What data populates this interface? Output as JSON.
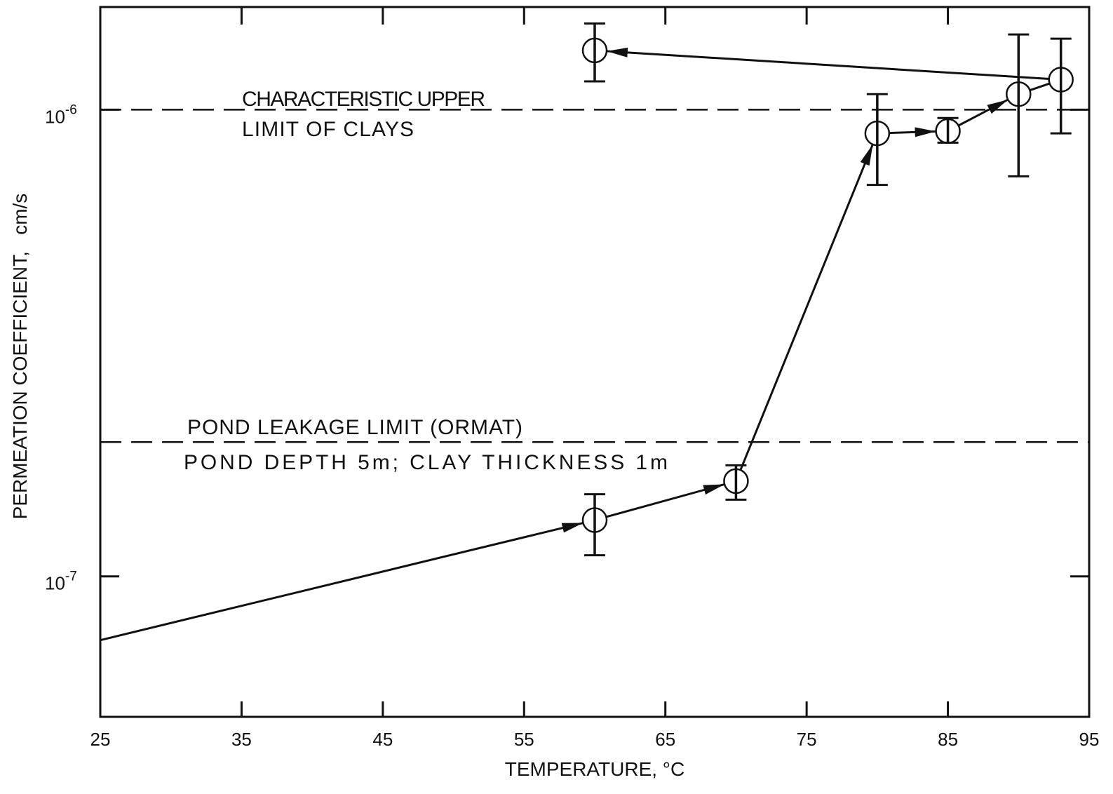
{
  "colors": {
    "ink": "#111111",
    "background": "#ffffff"
  },
  "chart_data": {
    "type": "scatter",
    "xlabel": "TEMPERATURE, °C",
    "ylabel": "PERMEATION COEFFICIENT,   cm/s",
    "x_scale": "linear",
    "y_scale": "log",
    "xlim": [
      25,
      95
    ],
    "ylim": [
      5e-08,
      1.66e-06
    ],
    "x_ticks": [
      25,
      35,
      45,
      55,
      65,
      75,
      85,
      95
    ],
    "y_ticks": [
      {
        "value": 1e-06,
        "base": "10",
        "exp": "-6"
      },
      {
        "value": 1e-07,
        "base": "10",
        "exp": "-7"
      }
    ],
    "grid": false,
    "legend": "none",
    "marker": "open-circle",
    "points": [
      {
        "x": 60,
        "y": 1.32e-07,
        "y_low": 1.11e-07,
        "y_high": 1.5e-07
      },
      {
        "x": 70,
        "y": 1.6e-07,
        "y_low": 1.46e-07,
        "y_high": 1.73e-07
      },
      {
        "x": 80,
        "y": 8.9e-07,
        "y_low": 6.9e-07,
        "y_high": 1.08e-06
      },
      {
        "x": 85,
        "y": 9e-07,
        "y_low": 8.5e-07,
        "y_high": 9.6e-07
      },
      {
        "x": 90,
        "y": 1.08e-06,
        "y_low": 7.2e-07,
        "y_high": 1.45e-06
      },
      {
        "x": 93,
        "y": 1.16e-06,
        "y_low": 8.9e-07,
        "y_high": 1.42e-06
      },
      {
        "x": 60,
        "y": 1.34e-06,
        "y_low": 1.15e-06,
        "y_high": 1.53e-06
      }
    ],
    "path": {
      "x": [
        25,
        60,
        70,
        80,
        85,
        90,
        93,
        60
      ],
      "y": [
        7.3e-08,
        1.32e-07,
        1.6e-07,
        8.9e-07,
        9e-07,
        1.08e-06,
        1.16e-06,
        1.34e-06
      ],
      "arrowheads": [
        true,
        true,
        true,
        true,
        true,
        false,
        true
      ]
    },
    "reference_lines": [
      {
        "y": 1e-06,
        "style": "dashed",
        "label_above": "CHARACTERISTIC UPPER",
        "label_below": "LIMIT OF CLAYS"
      },
      {
        "y": 1.94e-07,
        "style": "dashed",
        "label_above": "POND LEAKAGE LIMIT (ORMAT)",
        "label_below": "POND DEPTH 5m; CLAY THICKNESS 1m"
      }
    ]
  }
}
